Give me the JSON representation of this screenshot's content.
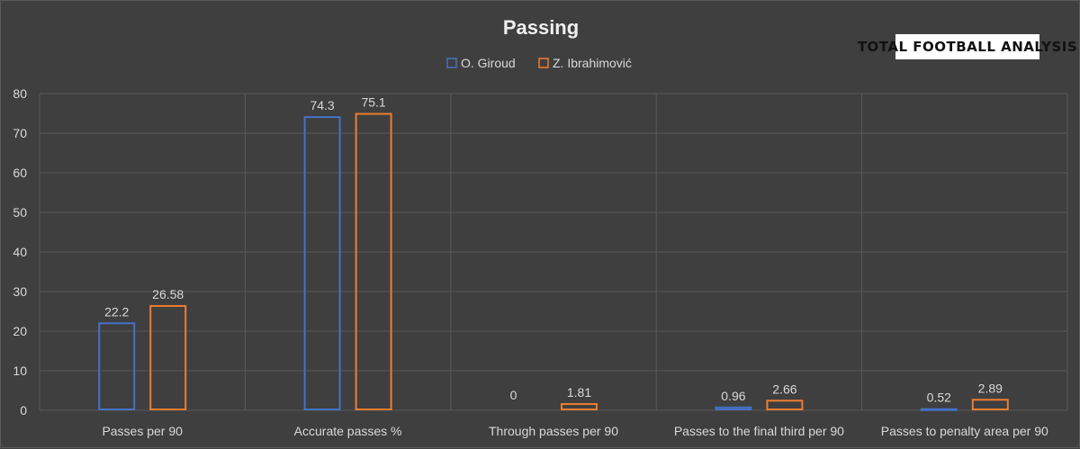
{
  "logo": {
    "text": "TOTAL FOOTBALL ANALYSIS"
  },
  "colors": {
    "series1": "#4472c4",
    "series2": "#ed7d31",
    "grid": "#595959",
    "text": "#d9d9d9"
  },
  "chart_data": {
    "type": "bar",
    "title": "Passing",
    "categories": [
      "Passes per 90",
      "Accurate passes %",
      "Through passes per 90",
      "Passes to the final third per 90",
      "Passes to penalty area per 90"
    ],
    "series": [
      {
        "name": "O. Giroud",
        "values": [
          22.2,
          74.3,
          0,
          0.96,
          0.52
        ],
        "labels": [
          "22.2",
          "74.3",
          "0",
          "0.96",
          "0.52"
        ]
      },
      {
        "name": "Z. Ibrahimović",
        "values": [
          26.58,
          75.1,
          1.81,
          2.66,
          2.89
        ],
        "labels": [
          "26.58",
          "75.1",
          "1.81",
          "2.66",
          "2.89"
        ]
      }
    ],
    "ylim": [
      0,
      80
    ],
    "yticks": [
      0,
      10,
      20,
      30,
      40,
      50,
      60,
      70,
      80
    ],
    "grid": true,
    "legend": "top-center",
    "xlabel": "",
    "ylabel": ""
  }
}
